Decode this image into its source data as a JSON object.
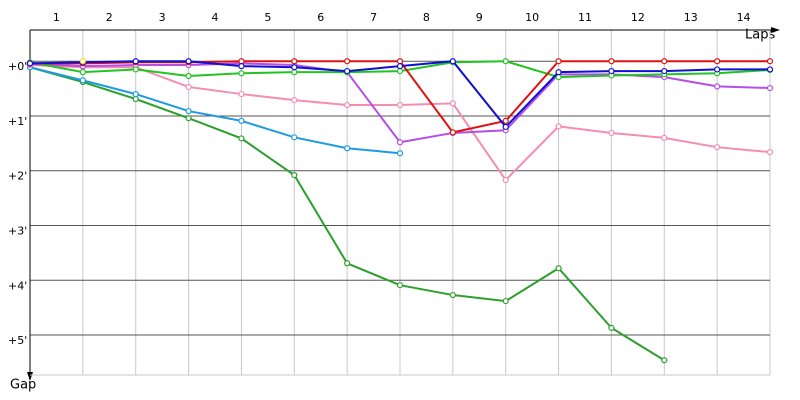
{
  "chart_data": {
    "type": "line",
    "x_label": "Laps",
    "y_label": "Gap",
    "x": [
      0,
      1,
      2,
      3,
      4,
      5,
      6,
      7,
      8,
      9,
      10,
      11,
      12,
      13,
      14
    ],
    "xlim": [
      0,
      14
    ],
    "xticks": [
      {
        "value": 0.5,
        "label": "1"
      },
      {
        "value": 1.5,
        "label": "2"
      },
      {
        "value": 2.5,
        "label": "3"
      },
      {
        "value": 3.5,
        "label": "4"
      },
      {
        "value": 4.5,
        "label": "5"
      },
      {
        "value": 5.5,
        "label": "6"
      },
      {
        "value": 6.5,
        "label": "7"
      },
      {
        "value": 7.5,
        "label": "8"
      },
      {
        "value": 8.5,
        "label": "9"
      },
      {
        "value": 9.5,
        "label": "10"
      },
      {
        "value": 10.5,
        "label": "11"
      },
      {
        "value": 11.5,
        "label": "12"
      },
      {
        "value": 12.5,
        "label": "13"
      },
      {
        "value": 13.5,
        "label": "14"
      }
    ],
    "ylim": [
      -0.57,
      5.73
    ],
    "yticks": [
      {
        "value": 0,
        "label": "+0'"
      },
      {
        "value": 1,
        "label": "+1'"
      },
      {
        "value": 2,
        "label": "+2'"
      },
      {
        "value": 3,
        "label": "+3'"
      },
      {
        "value": 4,
        "label": "+4'"
      },
      {
        "value": 5,
        "label": "+5'"
      }
    ],
    "grid": true,
    "series": [
      {
        "color": "#2ca02c",
        "values": [
          0.11,
          0.38,
          0.69,
          1.04,
          1.41,
          2.08,
          3.69,
          4.09,
          4.27,
          4.38,
          3.78,
          4.87,
          5.46,
          null,
          null
        ]
      },
      {
        "color": "#1e9be0",
        "values": [
          0.11,
          0.35,
          0.6,
          0.91,
          1.09,
          1.39,
          1.59,
          1.68,
          null,
          null,
          null,
          null,
          null,
          null,
          null
        ]
      },
      {
        "color": "#f48cb4",
        "values": [
          0.07,
          0.11,
          0.11,
          0.47,
          0.6,
          0.71,
          0.8,
          0.8,
          0.77,
          2.17,
          1.19,
          1.31,
          1.4,
          1.57,
          1.66
        ]
      },
      {
        "color": "#b44ee6",
        "values": [
          0.05,
          0.09,
          0.07,
          0.07,
          0.04,
          0.07,
          0.2,
          1.48,
          1.31,
          1.26,
          0.24,
          0.24,
          0.29,
          0.46,
          0.49
        ]
      },
      {
        "color": "#22c422",
        "values": [
          0.02,
          0.2,
          0.15,
          0.27,
          0.22,
          0.2,
          0.2,
          0.18,
          0.02,
          0,
          0.29,
          0.26,
          0.24,
          0.22,
          0.16
        ]
      },
      {
        "color": "#e01010",
        "values": [
          0.04,
          0.04,
          0.02,
          0.02,
          0,
          0,
          0,
          0,
          1.3,
          1.09,
          0,
          0,
          0,
          0,
          0
        ]
      },
      {
        "color": "#1010d0",
        "values": [
          0.04,
          0.02,
          0,
          0,
          0.09,
          0.11,
          0.18,
          0.09,
          0,
          1.2,
          0.2,
          0.18,
          0.18,
          0.15,
          0.15
        ]
      },
      {
        "color": "#e8e020",
        "values": [
          null,
          0,
          null,
          null,
          null,
          null,
          null,
          null,
          null,
          null,
          null,
          null,
          null,
          null,
          null
        ]
      }
    ]
  }
}
